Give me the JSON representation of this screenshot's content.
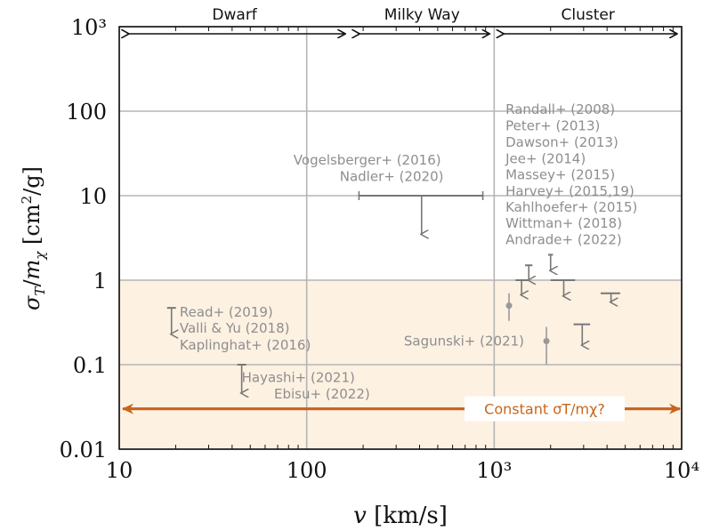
{
  "chart_data": {
    "type": "scatter",
    "xscale": "log",
    "yscale": "log",
    "xlim": [
      10,
      10000
    ],
    "ylim": [
      0.01,
      1000
    ],
    "xlabel": "v [km/s]",
    "ylabel": "σT/mχ [cm²/g]",
    "x_ticks": [
      {
        "value": 10,
        "label": "10"
      },
      {
        "value": 100,
        "label": "100"
      },
      {
        "value": 1000,
        "label": "10³"
      },
      {
        "value": 10000,
        "label": "10⁴"
      }
    ],
    "y_ticks": [
      {
        "value": 0.01,
        "label": "0.01"
      },
      {
        "value": 0.1,
        "label": "0.1"
      },
      {
        "value": 1,
        "label": "1"
      },
      {
        "value": 10,
        "label": "10"
      },
      {
        "value": 100,
        "label": "100"
      },
      {
        "value": 1000,
        "label": "10³"
      }
    ],
    "grid": true,
    "regions": [
      {
        "label": "Dwarf",
        "x_from": 10,
        "x_to": 170
      },
      {
        "label": "Milky Way",
        "x_from": 170,
        "x_to": 1000
      },
      {
        "label": "Cluster",
        "x_from": 1000,
        "x_to": 10000
      }
    ],
    "shaded_band": {
      "y_from": 0.01,
      "y_to": 1,
      "color": "#fdf1e2"
    },
    "constant_line": {
      "y": 0.03,
      "x_from": 10,
      "x_to": 10000,
      "label": "Constant σT/mχ?",
      "color": "#c8651b"
    },
    "upper_limits": [
      {
        "x": 19,
        "y": 0.47,
        "arrow_to": 0.23
      },
      {
        "x": 45,
        "y": 0.1,
        "arrow_to": 0.046
      },
      {
        "x": 410,
        "y": 10,
        "x_err": [
          190,
          870
        ],
        "arrow_to": 3.5
      },
      {
        "x": 1400,
        "y": 1.0,
        "x_err": [
          1300,
          1520
        ],
        "arrow_to": 0.67
      },
      {
        "x": 1530,
        "y": 1.5,
        "x_err": [
          1460,
          1600
        ],
        "arrow_to": 1.0
      },
      {
        "x": 2000,
        "y": 2.0,
        "x_err": [
          1940,
          2060
        ],
        "arrow_to": 1.3
      },
      {
        "x": 2350,
        "y": 1.0,
        "x_err": [
          2000,
          2700
        ],
        "arrow_to": 0.65
      },
      {
        "x": 2950,
        "y": 0.3,
        "x_err": [
          2650,
          3250
        ],
        "arrow_to": 0.17
      },
      {
        "x": 4200,
        "y": 0.7,
        "x_err": [
          3700,
          4700
        ],
        "arrow_to": 0.55
      }
    ],
    "measurements": [
      {
        "x": 1200,
        "y": 0.5,
        "y_err": [
          0.33,
          0.7
        ]
      },
      {
        "x": 1900,
        "y": 0.19,
        "y_err": [
          0.1,
          0.28
        ]
      }
    ],
    "annotations": [
      {
        "text": "Randall+ (2008)",
        "x": 1150,
        "y": 105
      },
      {
        "text": "Peter+ (2013)",
        "x": 1150,
        "y": 67
      },
      {
        "text": "Dawson+ (2013)",
        "x": 1150,
        "y": 43
      },
      {
        "text": "Jee+ (2014)",
        "x": 1150,
        "y": 27.5
      },
      {
        "text": "Massey+ (2015)",
        "x": 1150,
        "y": 17.7
      },
      {
        "text": "Harvey+ (2015,19)",
        "x": 1150,
        "y": 11.3
      },
      {
        "text": "Kahlhoefer+ (2015)",
        "x": 1150,
        "y": 7.3
      },
      {
        "text": "Wittman+ (2018)",
        "x": 1150,
        "y": 4.7
      },
      {
        "text": "Andrade+ (2022)",
        "x": 1150,
        "y": 3.0
      },
      {
        "text": "Vogelsberger+ (2016)",
        "x": 85,
        "y": 26.5
      },
      {
        "text": "Nadler+ (2020)",
        "x": 150,
        "y": 16.8
      },
      {
        "text": "Read+ (2019)",
        "x": 21,
        "y": 0.42
      },
      {
        "text": "Valli & Yu (2018)",
        "x": 21,
        "y": 0.27
      },
      {
        "text": "Kaplinghat+ (2016)",
        "x": 21,
        "y": 0.17
      },
      {
        "text": "Sagunski+ (2021)",
        "x": 330,
        "y": 0.19
      },
      {
        "text": "Hayashi+ (2021)",
        "x": 45,
        "y": 0.07
      },
      {
        "text": "Ebisu+ (2022)",
        "x": 67,
        "y": 0.045
      }
    ]
  }
}
